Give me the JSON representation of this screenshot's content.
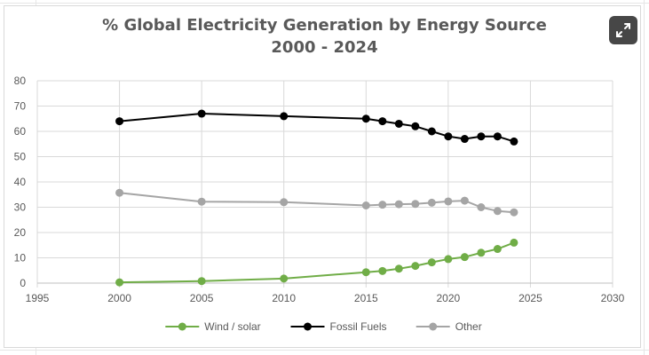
{
  "chart_data": {
    "type": "scatter",
    "title": "% Global Electricity Generation by Energy Source",
    "subtitle": "2000 - 2024",
    "xlim": [
      1995,
      2030
    ],
    "ylim": [
      0,
      80
    ],
    "x_ticks": [
      "1995",
      "2000",
      "2005",
      "2010",
      "2015",
      "2020",
      "2025",
      "2030"
    ],
    "y_ticks": [
      "0",
      "10",
      "20",
      "30",
      "40",
      "50",
      "60",
      "70",
      "80"
    ],
    "grid": true,
    "legend_position": "bottom",
    "series": [
      {
        "name": "Wind / solar",
        "color": "#70ad47",
        "x": [
          2000,
          2005,
          2010,
          2015,
          2016,
          2017,
          2018,
          2019,
          2020,
          2021,
          2022,
          2023,
          2024
        ],
        "y": [
          0.3,
          0.8,
          1.8,
          4.3,
          4.8,
          5.7,
          6.8,
          8.2,
          9.5,
          10.3,
          12.0,
          13.5,
          16.0
        ]
      },
      {
        "name": "Fossil Fuels",
        "color": "#000000",
        "x": [
          2000,
          2005,
          2010,
          2015,
          2016,
          2017,
          2018,
          2019,
          2020,
          2021,
          2022,
          2023,
          2024
        ],
        "y": [
          64,
          67,
          66,
          65,
          64,
          63,
          62,
          60,
          58,
          57,
          58,
          58,
          56
        ]
      },
      {
        "name": "Other",
        "color": "#a5a5a5",
        "x": [
          2000,
          2005,
          2010,
          2015,
          2016,
          2017,
          2018,
          2019,
          2020,
          2021,
          2022,
          2023,
          2024
        ],
        "y": [
          35.7,
          32.2,
          32.0,
          30.7,
          31.0,
          31.2,
          31.3,
          31.8,
          32.3,
          32.6,
          30.0,
          28.5,
          28.0
        ]
      }
    ]
  },
  "ui": {
    "expand_icon": "expand-icon"
  }
}
